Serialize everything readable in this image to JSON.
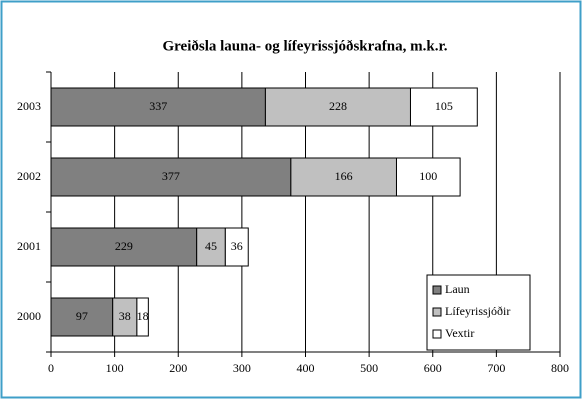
{
  "chart_data": {
    "type": "stacked-barh",
    "title": "Greiðsla launa- og lífeyrissjóðskrafna, m.k.r.",
    "categories": [
      "2000",
      "2001",
      "2002",
      "2003"
    ],
    "series": [
      {
        "name": "Laun",
        "color": "#808080",
        "values": [
          97,
          229,
          377,
          337
        ]
      },
      {
        "name": "Lífeyrissjóðir",
        "color": "#c0c0c0",
        "values": [
          38,
          45,
          166,
          228
        ]
      },
      {
        "name": "Vextir",
        "color": "#ffffff",
        "values": [
          18,
          36,
          100,
          105
        ]
      }
    ],
    "xlim": [
      0,
      800
    ],
    "xticks": [
      0,
      100,
      200,
      300,
      400,
      500,
      600,
      700,
      800
    ],
    "grid": true,
    "legend": "lower right"
  }
}
